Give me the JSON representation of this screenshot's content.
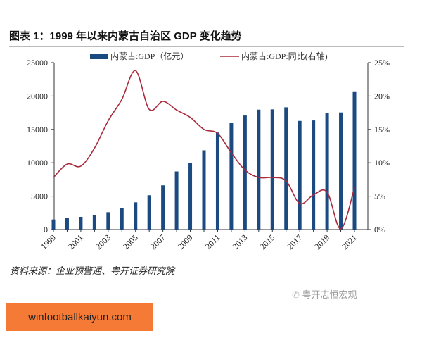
{
  "title": "图表 1：1999 年以来内蒙古自治区 GDP 变化趋势",
  "source": "资料来源：企业预警通、粤开证券研究院",
  "watermark": "粤开志恒宏观",
  "banner": "winfootballkaiyun.com",
  "chart_data": {
    "type": "bar+line",
    "categories": [
      "1999",
      "2000",
      "2001",
      "2002",
      "2003",
      "2004",
      "2005",
      "2006",
      "2007",
      "2008",
      "2009",
      "2010",
      "2011",
      "2012",
      "2013",
      "2014",
      "2015",
      "2016",
      "2017",
      "2018",
      "2019",
      "2020",
      "2021"
    ],
    "x_tick_labels": [
      "1999",
      "2001",
      "2003",
      "2005",
      "2007",
      "2009",
      "2011",
      "2013",
      "2015",
      "2017",
      "2019",
      "2021"
    ],
    "series": [
      {
        "name": "内蒙古:GDP（亿元）",
        "type": "bar",
        "axis": "left",
        "color": "#1b4a80",
        "values": [
          1510,
          1760,
          1900,
          2110,
          2600,
          3240,
          4080,
          5140,
          6620,
          8700,
          9930,
          11870,
          14540,
          16020,
          17080,
          17960,
          18000,
          18310,
          16270,
          16340,
          17430,
          17540,
          20700
        ]
      },
      {
        "name": "内蒙古:GDP:同比(右轴)",
        "type": "line",
        "axis": "right",
        "color": "#a82a3c",
        "values": [
          7.8,
          9.8,
          9.5,
          12.2,
          16.3,
          19.5,
          23.8,
          18.0,
          19.2,
          17.9,
          16.8,
          15.0,
          14.4,
          11.5,
          8.9,
          7.8,
          7.8,
          7.3,
          3.9,
          5.2,
          5.6,
          0.1,
          6.3
        ]
      }
    ],
    "left_axis": {
      "ylim": [
        0,
        25000
      ],
      "ticks": [
        "0",
        "5000",
        "10000",
        "15000",
        "20000",
        "25000"
      ]
    },
    "right_axis": {
      "ylim": [
        0,
        25
      ],
      "ticks": [
        "0%",
        "5%",
        "10%",
        "15%",
        "20%",
        "25%"
      ]
    },
    "legend": "top",
    "grid": false
  }
}
